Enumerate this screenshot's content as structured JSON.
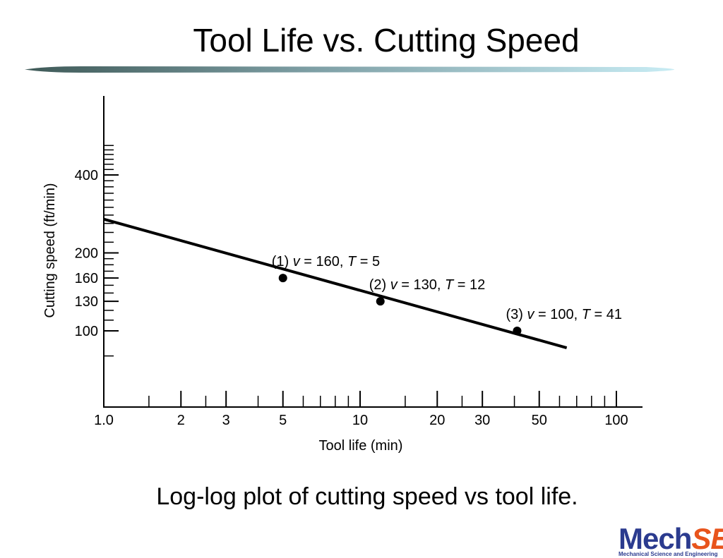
{
  "slide": {
    "title": "Tool Life vs. Cutting Speed",
    "caption": "Log-log plot of cutting speed vs tool life."
  },
  "logo": {
    "brand_main": "Mech",
    "brand_accent": "SE",
    "subtitle": "Mechanical Science and Engineering",
    "colors": {
      "main": "#2b3b8f",
      "accent": "#e8541c"
    }
  },
  "chart_data": {
    "type": "line",
    "xlabel": "Tool life (min)",
    "ylabel": "Cutting speed (ft/min)",
    "x_scale": "log",
    "y_scale": "log",
    "x_ticks": [
      {
        "value": 1,
        "label": "1.0"
      },
      {
        "value": 2,
        "label": "2"
      },
      {
        "value": 3,
        "label": "3"
      },
      {
        "value": 5,
        "label": "5"
      },
      {
        "value": 10,
        "label": "10"
      },
      {
        "value": 20,
        "label": "20"
      },
      {
        "value": 30,
        "label": "30"
      },
      {
        "value": 50,
        "label": "50"
      },
      {
        "value": 100,
        "label": "100"
      }
    ],
    "y_ticks": [
      {
        "value": 100,
        "label": "100"
      },
      {
        "value": 130,
        "label": "130"
      },
      {
        "value": 160,
        "label": "160"
      },
      {
        "value": 200,
        "label": "200"
      },
      {
        "value": 400,
        "label": "400"
      }
    ],
    "line": {
      "x": [
        1,
        64
      ],
      "y": [
        270,
        86
      ]
    },
    "points": [
      {
        "T": 5,
        "v": 160,
        "id": "(1)",
        "v_text": "160",
        "t_text": "5"
      },
      {
        "T": 12,
        "v": 130,
        "id": "(2)",
        "v_text": "130",
        "t_text": "12"
      },
      {
        "T": 41,
        "v": 100,
        "id": "(3)",
        "v_text": "100",
        "t_text": "41"
      }
    ],
    "grid": false,
    "legend": "none"
  }
}
